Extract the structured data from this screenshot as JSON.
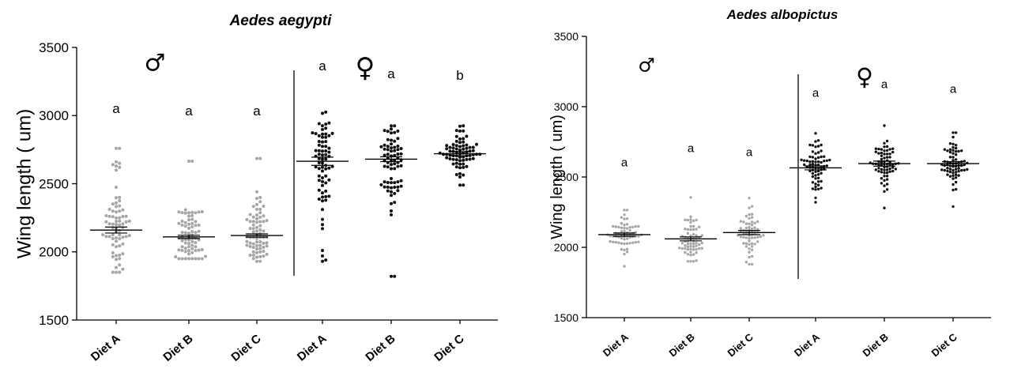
{
  "chart_data": [
    {
      "type": "scatter",
      "title": "Aedes aegypti",
      "ylabel": "Wing length ( um)",
      "ylim": [
        1500,
        3500
      ],
      "yticks": [
        1500,
        2000,
        2500,
        3000,
        3500
      ],
      "categories": [
        "Diet A",
        "Diet B",
        "Diet C",
        "Diet A",
        "Diet B",
        "Diet C"
      ],
      "groups": [
        {
          "sex_symbol": "♂",
          "sex": "male",
          "category_indices": [
            0,
            1,
            2
          ]
        },
        {
          "sex_symbol": "♀",
          "sex": "female",
          "category_indices": [
            3,
            4,
            5
          ]
        }
      ],
      "letters": [
        "a",
        "a",
        "a",
        "a",
        "a",
        "b"
      ],
      "series": [
        {
          "category": "Diet A",
          "sex": "male",
          "color": "#a6a6a6",
          "mean": 2160,
          "sem": 22,
          "min": 1850,
          "max": 2760,
          "n": 70,
          "outliers": [
            2760,
            2660,
            2650,
            2640,
            2630,
            2620,
            2600,
            2400
          ]
        },
        {
          "category": "Diet B",
          "sex": "male",
          "color": "#a6a6a6",
          "mean": 2110,
          "sem": 12,
          "min": 1950,
          "max": 2665,
          "n": 70,
          "outliers": [
            2665
          ]
        },
        {
          "category": "Diet C",
          "sex": "male",
          "color": "#a6a6a6",
          "mean": 2120,
          "sem": 12,
          "min": 1930,
          "max": 2685,
          "n": 70,
          "outliers": [
            2685
          ]
        },
        {
          "category": "Diet A",
          "sex": "female",
          "color": "#111111",
          "mean": 2665,
          "sem": 30,
          "min": 1930,
          "max": 3025,
          "n": 70,
          "outliers": [
            2200,
            2170,
            2010,
            1970,
            1940
          ]
        },
        {
          "category": "Diet B",
          "sex": "female",
          "color": "#111111",
          "mean": 2680,
          "sem": 18,
          "min": 1820,
          "max": 2925,
          "n": 70,
          "outliers": [
            2300,
            1820
          ]
        },
        {
          "category": "Diet C",
          "sex": "female",
          "color": "#111111",
          "mean": 2720,
          "sem": 15,
          "min": 2490,
          "max": 2925,
          "n": 70,
          "outliers": []
        }
      ]
    },
    {
      "type": "scatter",
      "title": "Aedes albopictus",
      "ylabel": "Wing length ( um)",
      "ylim": [
        1500,
        3500
      ],
      "yticks": [
        1500,
        2000,
        2500,
        3000,
        3500
      ],
      "categories": [
        "Diet A",
        "Diet B",
        "Diet C",
        "Diet A",
        "Diet B",
        "Diet C"
      ],
      "groups": [
        {
          "sex_symbol": "♂",
          "sex": "male",
          "category_indices": [
            0,
            1,
            2
          ]
        },
        {
          "sex_symbol": "♀",
          "sex": "female",
          "category_indices": [
            3,
            4,
            5
          ]
        }
      ],
      "letters": [
        "a",
        "a",
        "a",
        "a",
        "a",
        "a"
      ],
      "series": [
        {
          "category": "Diet A",
          "sex": "male",
          "color": "#a6a6a6",
          "mean": 2090,
          "sem": 12,
          "min": 1865,
          "max": 2265,
          "n": 60,
          "outliers": []
        },
        {
          "category": "Diet B",
          "sex": "male",
          "color": "#a6a6a6",
          "mean": 2060,
          "sem": 14,
          "min": 1900,
          "max": 2355,
          "n": 60,
          "outliers": []
        },
        {
          "category": "Diet C",
          "sex": "male",
          "color": "#a6a6a6",
          "mean": 2105,
          "sem": 15,
          "min": 1880,
          "max": 2350,
          "n": 60,
          "outliers": []
        },
        {
          "category": "Diet A",
          "sex": "female",
          "color": "#111111",
          "mean": 2565,
          "sem": 14,
          "min": 2320,
          "max": 2810,
          "n": 65,
          "outliers": []
        },
        {
          "category": "Diet B",
          "sex": "female",
          "color": "#111111",
          "mean": 2595,
          "sem": 18,
          "min": 2280,
          "max": 2865,
          "n": 65,
          "outliers": []
        },
        {
          "category": "Diet C",
          "sex": "female",
          "color": "#111111",
          "mean": 2595,
          "sem": 14,
          "min": 2290,
          "max": 2815,
          "n": 65,
          "outliers": []
        }
      ]
    }
  ]
}
